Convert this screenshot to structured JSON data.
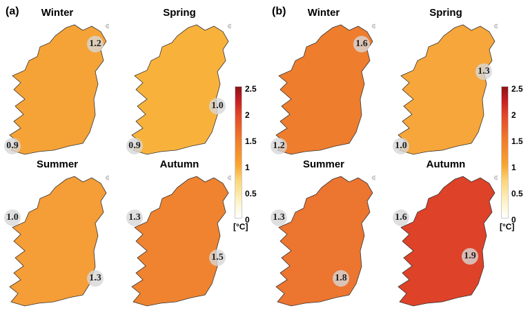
{
  "panels": [
    {
      "label": "(a)",
      "maps": [
        {
          "title": "Winter",
          "fill": "#f5a337",
          "sites": [
            "1.2",
            "0.9"
          ]
        },
        {
          "title": "Spring",
          "fill": "#f8b23c",
          "sites": [
            "1.0",
            "0.9"
          ]
        },
        {
          "title": "Summer",
          "fill": "#f59d36",
          "sites": [
            "1.0",
            "1.3"
          ]
        },
        {
          "title": "Autumn",
          "fill": "#ef8330",
          "sites": [
            "1.3",
            "1.5"
          ]
        }
      ]
    },
    {
      "label": "(b)",
      "maps": [
        {
          "title": "Winter",
          "fill": "#ee7d2e",
          "sites": [
            "1.6",
            "1.2"
          ]
        },
        {
          "title": "Spring",
          "fill": "#f6a63a",
          "sites": [
            "1.3",
            "1.0"
          ]
        },
        {
          "title": "Summer",
          "fill": "#ec7530",
          "sites": [
            "1.3",
            "1.8"
          ]
        },
        {
          "title": "Autumn",
          "fill": "#de4228",
          "sites": [
            "1.6",
            "1.9"
          ]
        }
      ]
    }
  ],
  "colorbar": {
    "ticks": [
      "2.5",
      "2",
      "1.5",
      "1",
      "0.5",
      "0"
    ],
    "unit": "[°C]",
    "range": [
      0,
      2.5
    ]
  }
}
